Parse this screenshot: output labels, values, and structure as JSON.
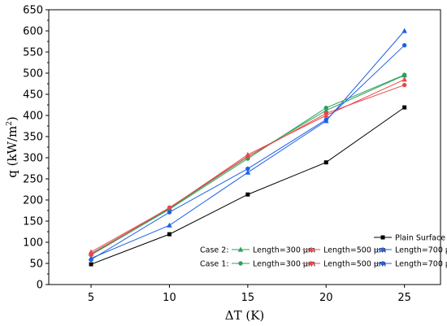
{
  "chart_data": {
    "type": "line",
    "xlabel": "ΔT (K)",
    "ylabel": "q (kW/m",
    "ylabel_sup": "2",
    "ylabel_close": ")",
    "x": [
      5,
      10,
      15,
      20,
      25
    ],
    "x_ticks": [
      5,
      10,
      15,
      20,
      25
    ],
    "y_ticks": [
      0,
      50,
      100,
      150,
      200,
      250,
      300,
      350,
      400,
      450,
      500,
      550,
      600,
      650
    ],
    "xlim": [
      2.3,
      27.3
    ],
    "ylim": [
      0,
      650
    ],
    "grid": false,
    "legend_position": "bottom-right",
    "legend_rows": [
      {
        "prefix": "",
        "series": [
          0
        ]
      },
      {
        "prefix": "Case 2:",
        "series": [
          1,
          2,
          3
        ]
      },
      {
        "prefix": "Case 1:",
        "series": [
          4,
          5,
          6
        ]
      }
    ],
    "series": [
      {
        "name": "Plain Surface",
        "color": "#000000",
        "marker": "square",
        "values": [
          48,
          119,
          213,
          289,
          419
        ]
      },
      {
        "name": "Length=300 μm",
        "color": "#2ca05a",
        "marker": "triangle",
        "values": [
          73,
          180,
          302,
          412,
          495
        ]
      },
      {
        "name": "Length=500 μm",
        "color": "#e8474b",
        "marker": "triangle",
        "values": [
          77,
          181,
          307,
          400,
          485
        ]
      },
      {
        "name": "Length=700 μm",
        "color": "#1f5fe6",
        "marker": "triangle",
        "values": [
          62,
          140,
          265,
          387,
          600
        ]
      },
      {
        "name": "Length=300 μm",
        "color": "#2ca05a",
        "marker": "circle",
        "values": [
          70,
          178,
          298,
          418,
          496
        ]
      },
      {
        "name": "Length=500 μm",
        "color": "#e8474b",
        "marker": "circle",
        "values": [
          71,
          182,
          303,
          405,
          472
        ]
      },
      {
        "name": "Length=700 μm",
        "color": "#1f5fe6",
        "marker": "circle",
        "values": [
          59,
          171,
          274,
          390,
          566
        ]
      }
    ]
  }
}
